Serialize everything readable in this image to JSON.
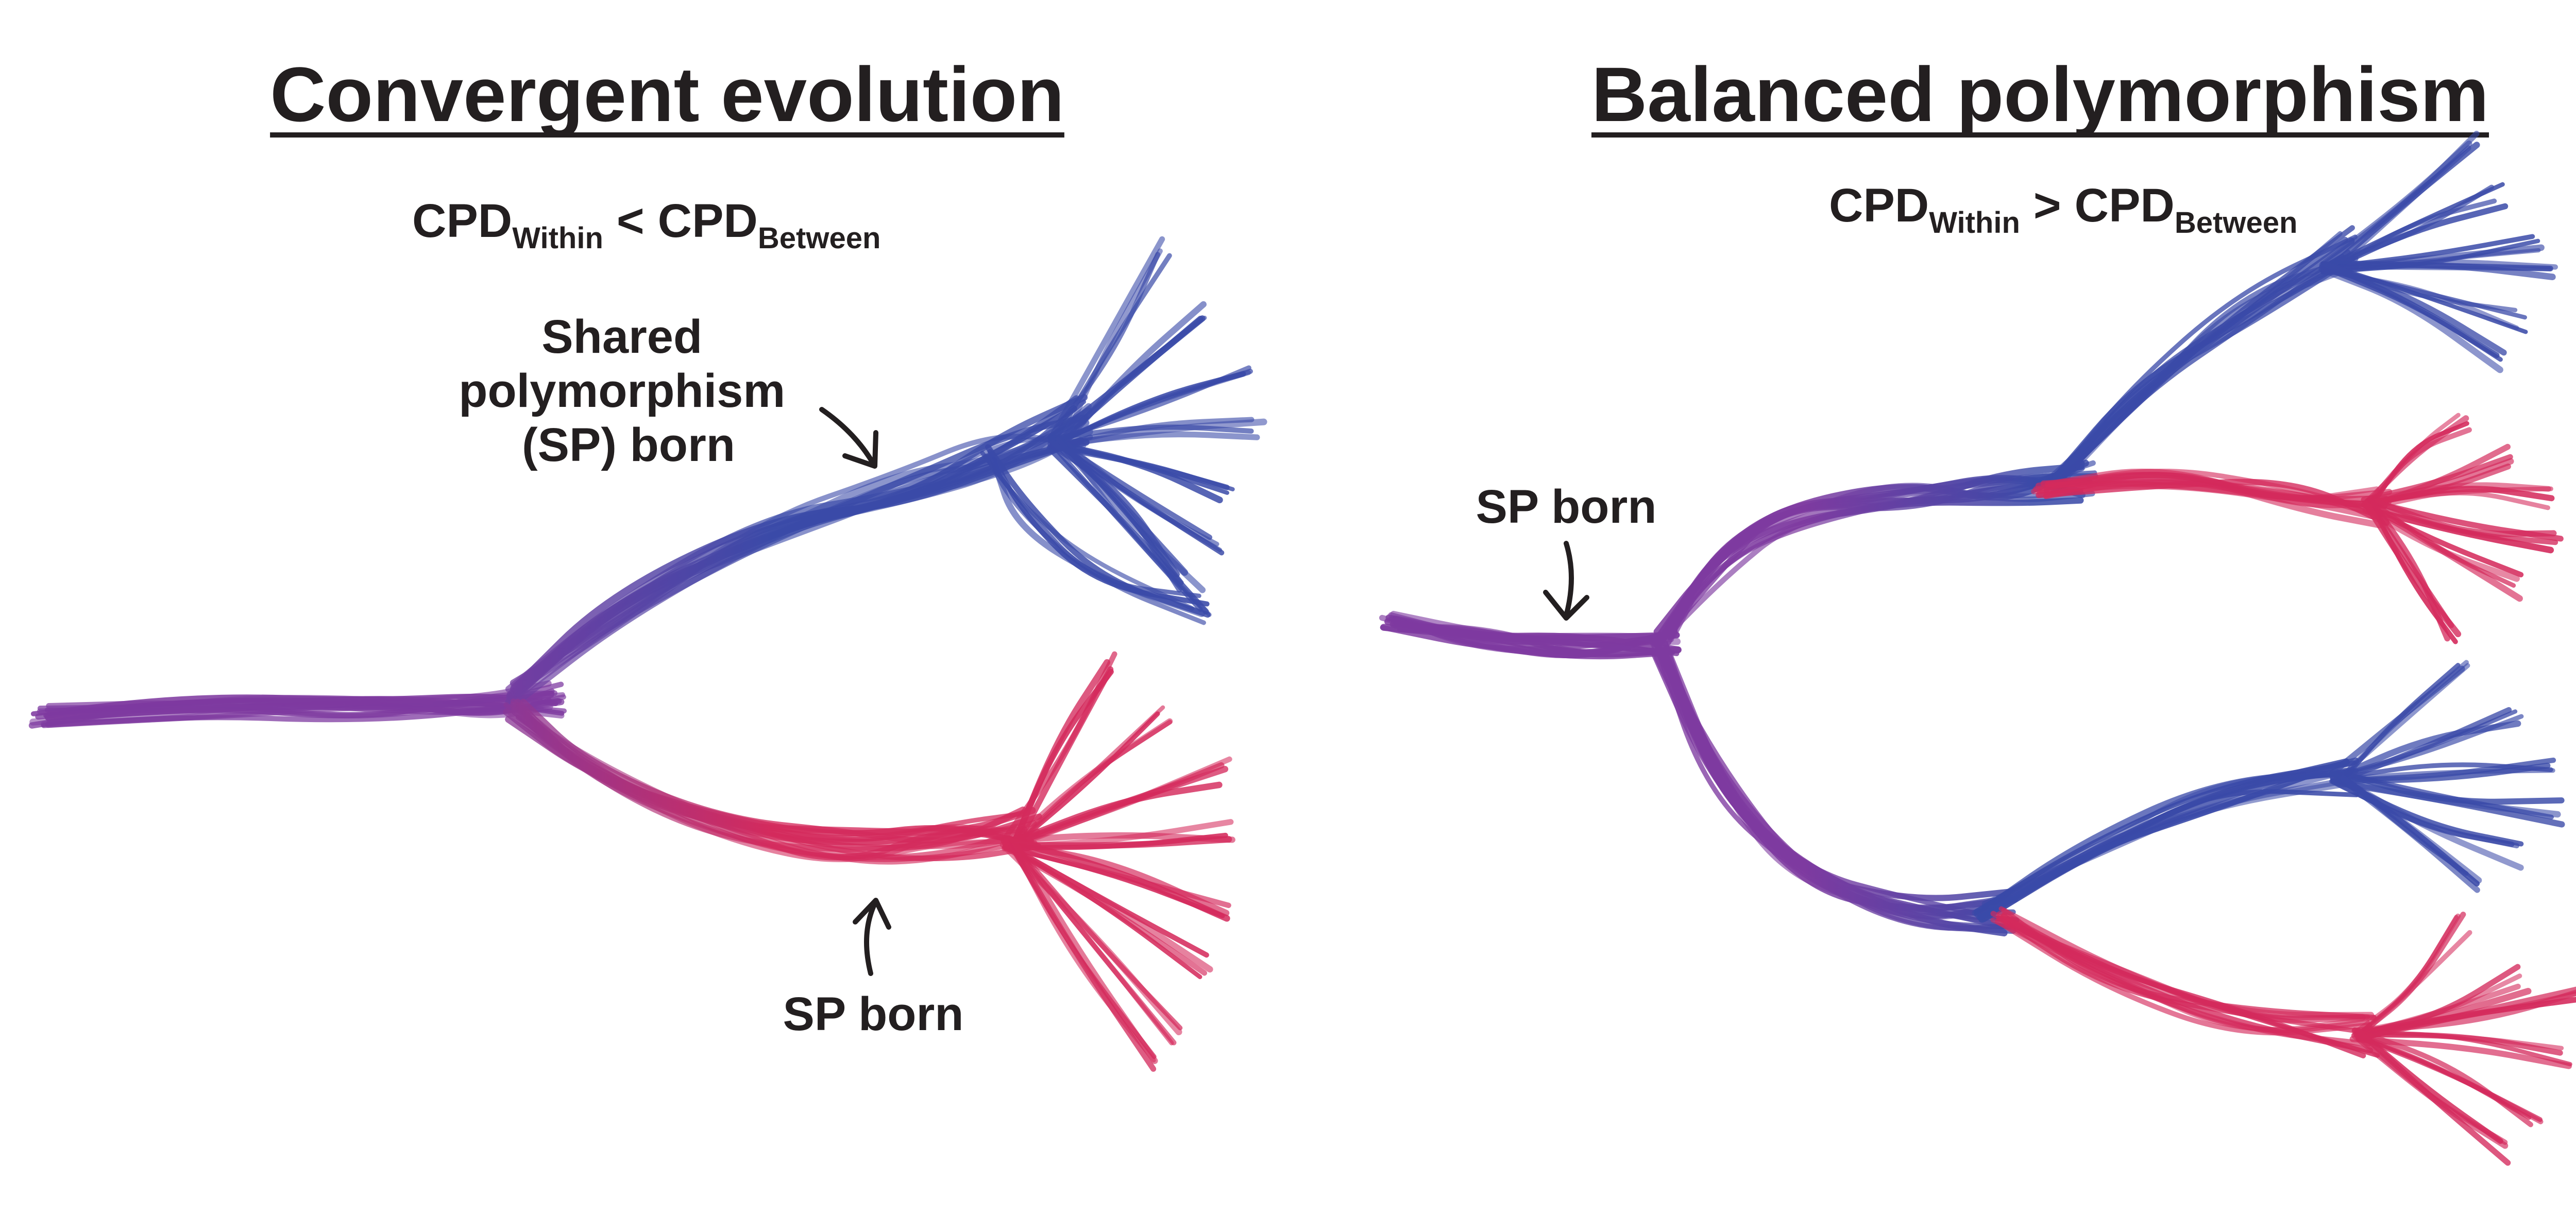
{
  "panels": [
    {
      "title": "Convergent evolution",
      "equation": {
        "left": "CPD",
        "left_sub": "Within",
        "operator": "<",
        "right": "CPD",
        "right_sub": "Between"
      },
      "labels": {
        "shared_line1": "Shared",
        "shared_line2": "polymorphism",
        "shared_line3": "(SP) born",
        "sp_born": "SP born"
      }
    },
    {
      "title": "Balanced polymorphism",
      "equation": {
        "left": "CPD",
        "left_sub": "Within",
        "operator": ">",
        "right": "CPD",
        "right_sub": "Between"
      },
      "labels": {
        "sp_born": "SP born"
      }
    }
  ],
  "colors": {
    "ancestral": "#7e3aa0",
    "lineage_blue": "#3a4aa8",
    "lineage_red": "#d42a5c",
    "text": "#231f20"
  }
}
